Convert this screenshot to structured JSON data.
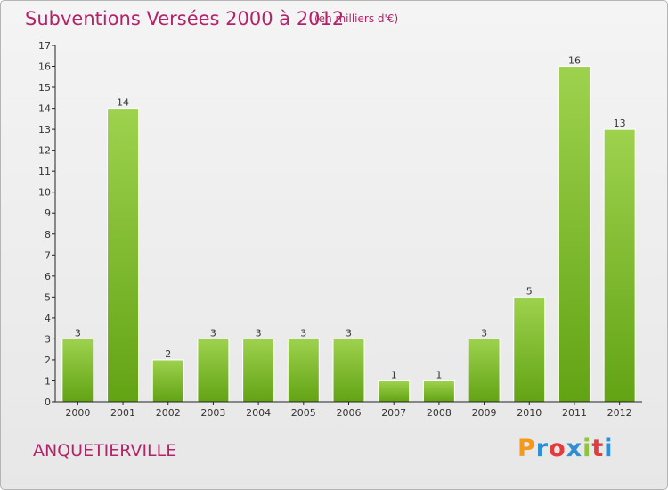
{
  "header": {
    "title": "Subventions Versées 2000 à 2012",
    "subtitle": "(en milliers d'€)"
  },
  "footer": {
    "commune": "ANQUETIERVILLE",
    "logo": {
      "letters": [
        "P",
        "r",
        "o",
        "x",
        "i",
        "t",
        "i"
      ],
      "colors": [
        "#f39a1d",
        "#2e8fd3",
        "#e33c3c",
        "#2e8fd3",
        "#8fc43d",
        "#e33c3c",
        "#2e8fd3"
      ]
    }
  },
  "colors": {
    "bar_light": "#9ed24e",
    "bar_dark": "#62a314",
    "title": "#b4226a"
  },
  "chart_data": {
    "type": "bar",
    "categories": [
      "2000",
      "2001",
      "2002",
      "2003",
      "2004",
      "2005",
      "2006",
      "2007",
      "2008",
      "2009",
      "2010",
      "2011",
      "2012"
    ],
    "values": [
      3,
      14,
      2,
      3,
      3,
      3,
      3,
      1,
      1,
      3,
      5,
      16,
      13
    ],
    "title": "Subventions Versées 2000 à 2012",
    "subtitle": "(en milliers d'€)",
    "ylim": [
      0,
      17
    ],
    "yticks": [
      0,
      1,
      2,
      3,
      4,
      5,
      6,
      7,
      8,
      9,
      10,
      11,
      12,
      13,
      14,
      15,
      16,
      17
    ],
    "grid": false,
    "legend": "none"
  }
}
